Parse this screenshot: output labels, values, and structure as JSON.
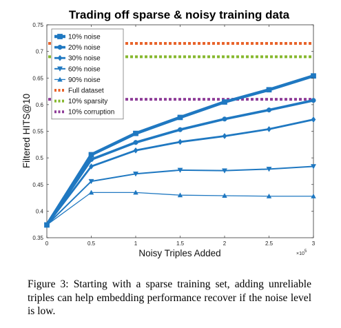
{
  "chart_data": {
    "type": "line",
    "title": "Trading off sparse & noisy training data",
    "xlabel": "Noisy Triples Added",
    "ylabel": "Filtered HITS@10",
    "x_exponent_label": "×10",
    "x_exponent_power": "5",
    "xlim": [
      0,
      3
    ],
    "ylim": [
      0.35,
      0.75
    ],
    "x_ticks": [
      "0",
      "0.5",
      "1",
      "1.5",
      "2",
      "2.5",
      "3"
    ],
    "y_ticks": [
      "0.35",
      "0.4",
      "0.45",
      "0.5",
      "0.55",
      "0.6",
      "0.65",
      "0.7",
      "0.75"
    ],
    "x": [
      0,
      0.5,
      1,
      1.5,
      2,
      2.5,
      3
    ],
    "series": [
      {
        "name": "10% noise",
        "marker": "square",
        "values": [
          0.374,
          0.506,
          0.546,
          0.576,
          0.605,
          0.628,
          0.654
        ]
      },
      {
        "name": "20% noise",
        "marker": "circle",
        "values": [
          0.374,
          0.497,
          0.529,
          0.553,
          0.573,
          0.59,
          0.608
        ]
      },
      {
        "name": "30% noise",
        "marker": "diamond",
        "values": [
          0.374,
          0.484,
          0.514,
          0.53,
          0.541,
          0.554,
          0.572
        ]
      },
      {
        "name": "60% noise",
        "marker": "triangle-down",
        "values": [
          0.374,
          0.456,
          0.47,
          0.477,
          0.476,
          0.479,
          0.484
        ]
      },
      {
        "name": "90% noise",
        "marker": "triangle-up",
        "values": [
          0.374,
          0.435,
          0.435,
          0.43,
          0.429,
          0.428,
          0.428
        ]
      }
    ],
    "reference_lines": [
      {
        "name": "Full dataset",
        "value": 0.715,
        "color": "#e8632a"
      },
      {
        "name": "10% sparsity",
        "value": 0.69,
        "color": "#86b82e"
      },
      {
        "name": "10% corruption",
        "value": 0.61,
        "color": "#8e3c98"
      }
    ],
    "series_color": "#1f78c1",
    "legend_position": "top-left",
    "grid": false
  },
  "caption": "Figure 3: Starting with a sparse training set, adding unreliable triples can help embedding performance recover if the noise level is low."
}
